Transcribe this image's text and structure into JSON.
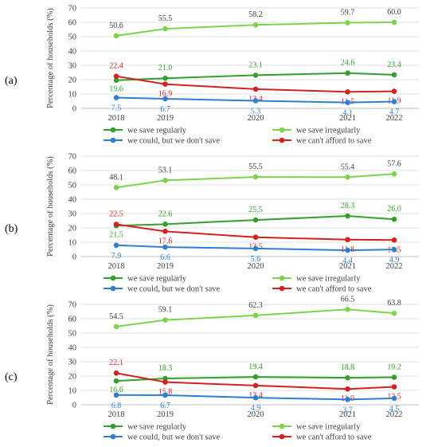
{
  "chart_data": [
    {
      "type": "line",
      "panel": "(a)",
      "ylabel": "Percentage of households (%)",
      "ylim": [
        0,
        70
      ],
      "yticks": [
        0,
        10,
        20,
        30,
        40,
        50,
        60,
        70
      ],
      "x": [
        "2018",
        "2019",
        "2020",
        "2021",
        "2022"
      ],
      "grid": true,
      "legend": "bottom",
      "series": [
        {
          "name": "we save irregularly",
          "color": "#7dd34a",
          "values": [
            50.6,
            55.5,
            58.2,
            59.7,
            60.0
          ],
          "labels": [
            "50.6",
            "55.5",
            "58.2",
            "59.7",
            "60.0"
          ]
        },
        {
          "name": "we save regularly",
          "color": "#33a02c",
          "values": [
            19.6,
            21.0,
            23.1,
            24.6,
            23.4
          ],
          "labels": [
            "19.6",
            "21.0",
            "23.1",
            "24.6",
            "23.4"
          ]
        },
        {
          "name": "we can't afford to save",
          "color": "#d42020",
          "values": [
            22.4,
            16.9,
            13.4,
            11.5,
            11.9
          ],
          "labels": [
            "22.4",
            "16.9",
            "13.4",
            "11.5",
            "11.9"
          ]
        },
        {
          "name": "we could, but we don't save",
          "color": "#2f7fd1",
          "values": [
            7.5,
            6.7,
            5.3,
            4.1,
            4.7
          ],
          "labels": [
            "7.5",
            "6.7",
            "5.3",
            "4.1",
            "4.7"
          ]
        }
      ]
    },
    {
      "type": "line",
      "panel": "(b)",
      "ylabel": "Percentage of households (%)",
      "ylim": [
        0,
        70
      ],
      "yticks": [
        0,
        10,
        20,
        30,
        40,
        50,
        60,
        70
      ],
      "x": [
        "2018",
        "2019",
        "2020",
        "2021",
        "2022"
      ],
      "grid": true,
      "legend": "bottom",
      "series": [
        {
          "name": "we save irregularly",
          "color": "#7dd34a",
          "values": [
            48.1,
            53.1,
            55.5,
            55.4,
            57.6
          ],
          "labels": [
            "48.1",
            "53.1",
            "55.5",
            "55.4",
            "57.6"
          ]
        },
        {
          "name": "we save regularly",
          "color": "#33a02c",
          "values": [
            21.5,
            22.6,
            25.5,
            28.3,
            26.0
          ],
          "labels": [
            "21.5",
            "22.6",
            "25.5",
            "28.3",
            "26.0"
          ]
        },
        {
          "name": "we can't afford to save",
          "color": "#d42020",
          "values": [
            22.5,
            17.6,
            13.5,
            11.8,
            11.5
          ],
          "labels": [
            "22.5",
            "17.6",
            "13.5",
            "11.8",
            "11.5"
          ]
        },
        {
          "name": "we could, but we don't save",
          "color": "#2f7fd1",
          "values": [
            7.9,
            6.6,
            5.6,
            4.4,
            4.9
          ],
          "labels": [
            "7.9",
            "6.6",
            "5.6",
            "4.4",
            "4.9"
          ]
        }
      ]
    },
    {
      "type": "line",
      "panel": "(c)",
      "ylabel": "Percentage of households (%)",
      "ylim": [
        0,
        70
      ],
      "yticks": [
        0,
        10,
        20,
        30,
        40,
        50,
        60,
        70
      ],
      "x": [
        "2018",
        "2019",
        "2020",
        "2021",
        "2022"
      ],
      "grid": true,
      "legend": "bottom",
      "series": [
        {
          "name": "we save irregularly",
          "color": "#7dd34a",
          "values": [
            54.5,
            59.1,
            62.3,
            66.5,
            63.8
          ],
          "labels": [
            "54.5",
            "59.1",
            "62.3",
            "66.5",
            "63.8"
          ]
        },
        {
          "name": "we save regularly",
          "color": "#33a02c",
          "values": [
            16.6,
            18.3,
            19.4,
            18.8,
            19.2
          ],
          "labels": [
            "16.6",
            "18.3",
            "19.4",
            "18.8",
            "19.2"
          ]
        },
        {
          "name": "we can't afford to save",
          "color": "#d42020",
          "values": [
            22.1,
            15.8,
            13.4,
            11.0,
            12.5
          ],
          "labels": [
            "22.1",
            "15.8",
            "13.4",
            "11.0",
            "12.5"
          ]
        },
        {
          "name": "we could, but we don't save",
          "color": "#2f7fd1",
          "values": [
            6.8,
            6.7,
            4.9,
            3.7,
            4.5
          ],
          "labels": [
            "6.8",
            "6.7",
            "4.9",
            "3.7",
            "4.5"
          ]
        }
      ]
    }
  ],
  "legend_order": [
    "we save regularly",
    "we save irregularly",
    "we could, but we don't save",
    "we can't afford to save"
  ]
}
